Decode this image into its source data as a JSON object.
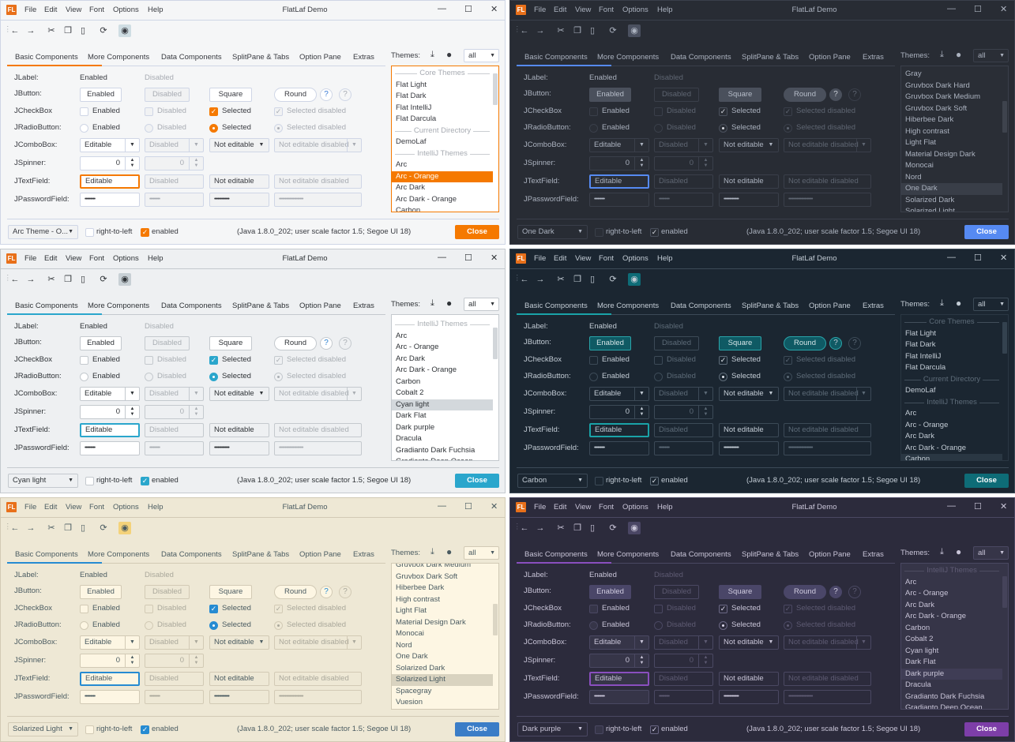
{
  "window": {
    "title": "FlatLaf Demo",
    "menu": [
      "File",
      "Edit",
      "View",
      "Font",
      "Options",
      "Help"
    ],
    "logo_text": "FL",
    "controls": [
      "minimize-icon",
      "maximize-icon",
      "close-icon"
    ]
  },
  "toolbar": [
    "back-icon",
    "forward-icon",
    "cut-icon",
    "copy-icon",
    "paste-icon",
    "refresh-icon",
    "eye-icon"
  ],
  "tabs": [
    "Basic Components",
    "More Components",
    "Data Components",
    "SplitPane & Tabs",
    "Option Pane",
    "Extras"
  ],
  "themes": {
    "label": "Themes:",
    "filter": "all"
  },
  "form": {
    "labels": [
      "JLabel:",
      "JButton:",
      "JCheckBox",
      "JRadioButton:",
      "JComboBox:",
      "JSpinner:",
      "JTextField:",
      "JPasswordField:"
    ],
    "label_row": [
      "Enabled",
      "Disabled"
    ],
    "buttons": [
      "Enabled",
      "Disabled",
      "Square",
      "Round",
      "?",
      "?"
    ],
    "checkboxes": [
      "Enabled",
      "Disabled",
      "Selected",
      "Selected disabled"
    ],
    "radios": [
      "Enabled",
      "Disabled",
      "Selected",
      "Selected disabled"
    ],
    "combos": [
      "Editable",
      "Disabled",
      "Not editable",
      "Not editable disabled"
    ],
    "spinners": [
      "0",
      "0"
    ],
    "textfields": [
      "Editable",
      "Disabled",
      "Not editable",
      "Not editable disabled"
    ],
    "passwords": [
      "•••••••••",
      "•••••••••",
      "•••••••••••••",
      "•••••••••••••••••••••"
    ]
  },
  "bottom": {
    "rtl_label": "right-to-left",
    "enabled_label": "enabled",
    "rtl_checked": false,
    "enabled_checked": true,
    "status": "(Java 1.8.0_202;  user scale factor 1.5; Segoe UI 18)",
    "close_label": "Close"
  },
  "panels": [
    {
      "theme_combo": "Arc Theme - O...",
      "selected": "Arc - Orange",
      "list_scroll": 0.05,
      "colors": {
        "bg": "#f5f6f7",
        "fg": "#383a40",
        "dis": "#a7abb2",
        "field": "#ffffff",
        "fielddis": "#f1f2f3",
        "border": "#cfd6e6",
        "btn": "#ffffff",
        "btnborder": "#cfd6e6",
        "btnfg": "#383a40",
        "accent": "#f57900",
        "accent2": "#3a7bd5",
        "sel": "#f57900",
        "selfg": "#ffffff",
        "listborder": "#f57900",
        "close": "#f57900",
        "eye": "#cfdde3",
        "checkfill": "#f57900",
        "checkborder": "#f57900",
        "checkfg": "#ffffff",
        "thumb": "#d4d7db"
      },
      "theme_list": [
        {
          "label": "Core Themes",
          "header": true
        },
        {
          "label": "Flat Light"
        },
        {
          "label": "Flat Dark"
        },
        {
          "label": "Flat IntelliJ"
        },
        {
          "label": "Flat Darcula"
        },
        {
          "label": "Current Directory",
          "header": true
        },
        {
          "label": "DemoLaf"
        },
        {
          "label": "IntelliJ Themes",
          "header": true
        },
        {
          "label": "Arc"
        },
        {
          "label": "Arc - Orange"
        },
        {
          "label": "Arc Dark"
        },
        {
          "label": "Arc Dark - Orange"
        },
        {
          "label": "Carbon"
        }
      ]
    },
    {
      "theme_combo": "One Dark",
      "selected": "One Dark",
      "list_scroll": 0.3,
      "colors": {
        "bg": "#282c34",
        "fg": "#abb2bf",
        "dis": "#5f6672",
        "field": "#2a2e36",
        "fielddis": "#282c34",
        "border": "#3a3f4a",
        "btn": "#4a505c",
        "btnborder": "#4a505c",
        "btnfg": "#b6bdc9",
        "accent": "#568af2",
        "accent2": "#c8ccd4",
        "sel": "#393e48",
        "selfg": "#abb2bf",
        "listborder": "#3a3f4a",
        "close": "#568af2",
        "eye": "#4b5160",
        "checkfill": "#2a2e36",
        "checkborder": "#4a505c",
        "checkfg": "#d7dae0",
        "thumb": "#3e434d"
      },
      "theme_list": [
        {
          "label": "Gray"
        },
        {
          "label": "Gruvbox Dark Hard"
        },
        {
          "label": "Gruvbox Dark Medium"
        },
        {
          "label": "Gruvbox Dark Soft"
        },
        {
          "label": "Hiberbee Dark"
        },
        {
          "label": "High contrast"
        },
        {
          "label": "Light Flat"
        },
        {
          "label": "Material Design Dark"
        },
        {
          "label": "Monocai"
        },
        {
          "label": "Nord"
        },
        {
          "label": "One Dark"
        },
        {
          "label": "Solarized Dark"
        },
        {
          "label": "Solarized Light"
        }
      ]
    },
    {
      "theme_combo": "Cyan light",
      "selected": "Cyan light",
      "list_scroll": 0.1,
      "colors": {
        "bg": "#eef0f2",
        "fg": "#2e3236",
        "dis": "#a9aeb3",
        "field": "#ffffff",
        "fielddis": "#eef0f2",
        "border": "#c4c9ce",
        "btn": "#ffffff",
        "btnborder": "#c4c9ce",
        "btnfg": "#2e3236",
        "accent": "#2aa6cc",
        "accent2": "#2a7fd0",
        "sel": "#d3d8dc",
        "selfg": "#2e3236",
        "listborder": "#c4c9ce",
        "close": "#2aa6cc",
        "eye": "#c8d0d5",
        "checkfill": "#2aa6cc",
        "checkborder": "#2aa6cc",
        "checkfg": "#ffffff",
        "thumb": "#d2d6da"
      },
      "theme_list": [
        {
          "label": "IntelliJ Themes",
          "header": true
        },
        {
          "label": "Arc"
        },
        {
          "label": "Arc - Orange"
        },
        {
          "label": "Arc Dark"
        },
        {
          "label": "Arc Dark - Orange"
        },
        {
          "label": "Carbon"
        },
        {
          "label": "Cobalt 2"
        },
        {
          "label": "Cyan light"
        },
        {
          "label": "Dark Flat"
        },
        {
          "label": "Dark purple"
        },
        {
          "label": "Dracula"
        },
        {
          "label": "Gradianto Dark Fuchsia"
        },
        {
          "label": "Gradianto Deep Ocean"
        }
      ]
    },
    {
      "theme_combo": "Carbon",
      "selected": "Carbon",
      "list_scroll": 0.05,
      "colors": {
        "bg": "#1b2631",
        "fg": "#c3ccd5",
        "dis": "#5d6b78",
        "field": "#1b2631",
        "fielddis": "#1b2631",
        "border": "#3c4a57",
        "btn": "#0f5a64",
        "btnborder": "#2aa3a8",
        "btnfg": "#d4e4e6",
        "accent": "#1aa3a8",
        "accent2": "#c3ccd5",
        "sel": "#2a3743",
        "selfg": "#c3ccd5",
        "listborder": "#2a3743",
        "close": "#0e6c77",
        "eye": "#0e6c77",
        "checkfill": "#1b2631",
        "checkborder": "#5d6b78",
        "checkfg": "#e0e6ec",
        "thumb": "#34424f"
      },
      "theme_list": [
        {
          "label": "Core Themes",
          "header": true
        },
        {
          "label": "Flat Light"
        },
        {
          "label": "Flat Dark"
        },
        {
          "label": "Flat IntelliJ"
        },
        {
          "label": "Flat Darcula"
        },
        {
          "label": "Current Directory",
          "header": true
        },
        {
          "label": "DemoLaf"
        },
        {
          "label": "IntelliJ Themes",
          "header": true
        },
        {
          "label": "Arc"
        },
        {
          "label": "Arc - Orange"
        },
        {
          "label": "Arc Dark"
        },
        {
          "label": "Arc Dark - Orange"
        },
        {
          "label": "Carbon"
        }
      ]
    },
    {
      "theme_combo": "Solarized Light",
      "selected": "Solarized Light",
      "list_scroll": 0.35,
      "colors": {
        "bg": "#eee8d5",
        "fg": "#4a5b61",
        "dis": "#aaa89b",
        "field": "#fdf6e3",
        "fielddis": "#eee8d5",
        "border": "#d2cab5",
        "btn": "#fdf6e3",
        "btnborder": "#d2cab5",
        "btnfg": "#4a5b61",
        "accent": "#268bd2",
        "accent2": "#268bd2",
        "sel": "#d9d3c0",
        "selfg": "#4a5b61",
        "listborder": "#d2cab5",
        "close": "#3b7dc7",
        "eye": "#f4d27a",
        "checkfill": "#268bd2",
        "checkborder": "#268bd2",
        "checkfg": "#ffffff",
        "thumb": "#dcd6c4"
      },
      "theme_list": [
        {
          "label": "Gruvbox Dark Medium"
        },
        {
          "label": "Gruvbox Dark Soft"
        },
        {
          "label": "Hiberbee Dark"
        },
        {
          "label": "High contrast"
        },
        {
          "label": "Light Flat"
        },
        {
          "label": "Material Design Dark"
        },
        {
          "label": "Monocai"
        },
        {
          "label": "Nord"
        },
        {
          "label": "One Dark"
        },
        {
          "label": "Solarized Dark"
        },
        {
          "label": "Solarized Light"
        },
        {
          "label": "Spacegray"
        },
        {
          "label": "Vuesion"
        }
      ]
    },
    {
      "theme_combo": "Dark purple",
      "selected": "Dark purple",
      "list_scroll": 0.1,
      "colors": {
        "bg": "#2c2b3c",
        "fg": "#c9c5d8",
        "dis": "#5e5b73",
        "field": "#363548",
        "fielddis": "#2c2b3c",
        "border": "#4a4862",
        "btn": "#4a4668",
        "btnborder": "#4a4668",
        "btnfg": "#d0cce0",
        "accent": "#8a4fbf",
        "accent2": "#d0cce0",
        "sel": "#3f3d55",
        "selfg": "#c9c5d8",
        "listborder": "#4a4862",
        "close": "#7d3ea8",
        "eye": "#4a4664",
        "checkfill": "#2c2b3c",
        "checkborder": "#6a6784",
        "checkfg": "#e0dcef",
        "thumb": "#45435a"
      },
      "theme_list": [
        {
          "label": "IntelliJ Themes",
          "header": true
        },
        {
          "label": "Arc"
        },
        {
          "label": "Arc - Orange"
        },
        {
          "label": "Arc Dark"
        },
        {
          "label": "Arc Dark - Orange"
        },
        {
          "label": "Carbon"
        },
        {
          "label": "Cobalt 2"
        },
        {
          "label": "Cyan light"
        },
        {
          "label": "Dark Flat"
        },
        {
          "label": "Dark purple"
        },
        {
          "label": "Dracula"
        },
        {
          "label": "Gradianto Dark Fuchsia"
        },
        {
          "label": "Gradianto Deep Ocean"
        }
      ]
    }
  ]
}
